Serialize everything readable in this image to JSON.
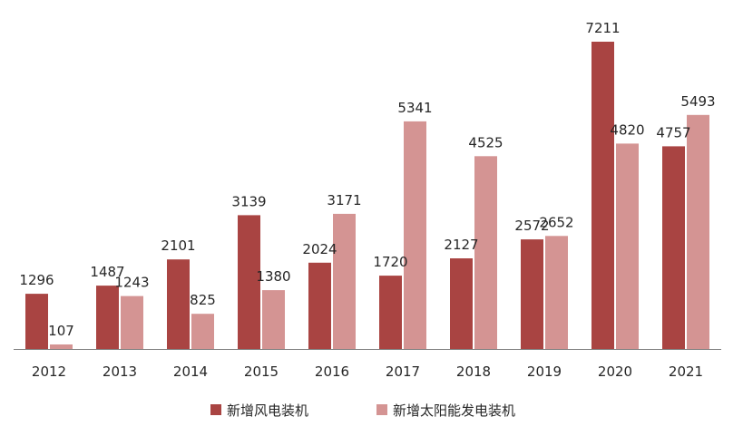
{
  "chart_data": {
    "type": "bar",
    "title": "",
    "xlabel": "",
    "ylabel": "",
    "categories": [
      "2012",
      "2013",
      "2014",
      "2015",
      "2016",
      "2017",
      "2018",
      "2019",
      "2020",
      "2021"
    ],
    "series": [
      {
        "name": "新增风电装机",
        "color": "#a94442",
        "values": [
          1296,
          1487,
          2101,
          3139,
          2024,
          1720,
          2127,
          2572,
          7211,
          4757
        ]
      },
      {
        "name": "新增太阳能发电装机",
        "color": "#d49493",
        "values": [
          107,
          1243,
          825,
          1380,
          3171,
          5341,
          4525,
          2652,
          4820,
          5493
        ]
      }
    ],
    "ylim": [
      0,
      7800
    ],
    "grid": false,
    "legend": "bottom",
    "data_labels": true
  }
}
